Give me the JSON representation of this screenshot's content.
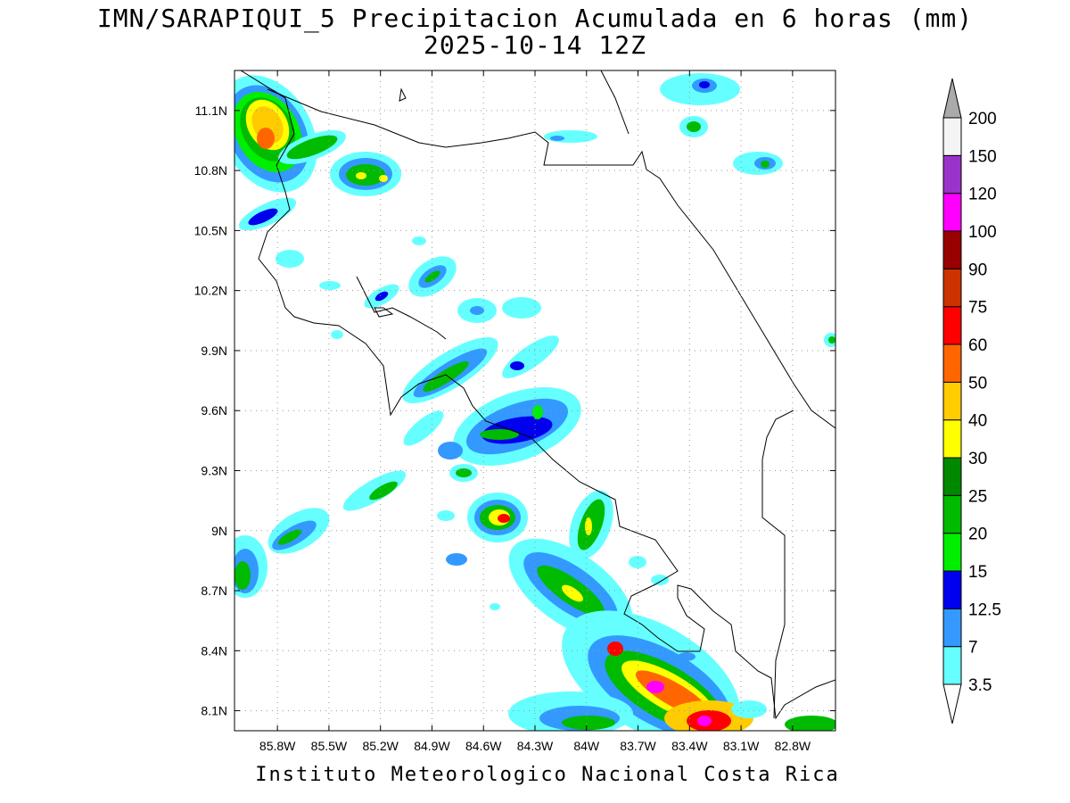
{
  "title_line1": "IMN/SARAPIQUI_5 Precipitacion Acumulada en 6 horas (mm)",
  "title_line2": "2025-10-14 12Z",
  "footer": "Instituto Meteorologico Nacional Costa Rica",
  "map": {
    "lon_range": [
      -86.05,
      -82.55
    ],
    "lat_range": [
      8.0,
      11.3
    ],
    "lat_ticks": [
      "11.1N",
      "10.8N",
      "10.5N",
      "10.2N",
      "9.9N",
      "9.6N",
      "9.3N",
      "9N",
      "8.7N",
      "8.4N",
      "8.1N"
    ],
    "lon_ticks": [
      "85.8W",
      "85.5W",
      "85.2W",
      "84.9W",
      "84.6W",
      "84.3W",
      "84W",
      "83.7W",
      "83.4W",
      "83.1W",
      "82.8W"
    ],
    "grid": true,
    "coastline_color": "#000000"
  },
  "colorbar": {
    "labels": [
      "3.5",
      "7",
      "12.5",
      "15",
      "20",
      "25",
      "30",
      "40",
      "50",
      "60",
      "75",
      "90",
      "100",
      "120",
      "150",
      "200"
    ],
    "colors": [
      "#66ffff",
      "#3399ff",
      "#0000ee",
      "#00ee00",
      "#00bb00",
      "#008800",
      "#ffff00",
      "#ffcc00",
      "#ff6600",
      "#ff0000",
      "#cc3300",
      "#990000",
      "#ff00ff",
      "#9933cc",
      "#f4f4f4"
    ],
    "over_color": "#aaaaaa",
    "under_color": "#ffffff"
  }
}
